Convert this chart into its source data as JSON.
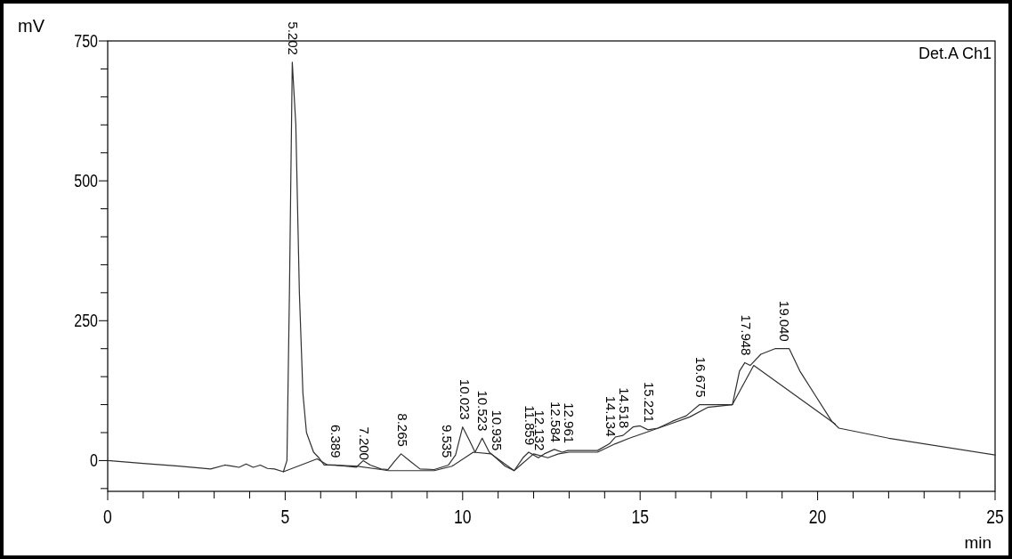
{
  "chart_data": {
    "type": "line",
    "xlabel": "min",
    "ylabel": "mV",
    "xlim": [
      0,
      25
    ],
    "ylim": [
      -55,
      750
    ],
    "xticks": [
      0,
      {
        "value": 1,
        "label": null
      },
      {
        "value": 2,
        "label": null
      },
      {
        "value": 3,
        "label": null
      },
      {
        "value": 4,
        "label": null
      },
      5,
      {
        "value": 6,
        "label": null
      },
      {
        "value": 7,
        "label": null
      },
      {
        "value": 8,
        "label": null
      },
      {
        "value": 9,
        "label": null
      },
      10,
      {
        "value": 11,
        "label": null
      },
      {
        "value": 12,
        "label": null
      },
      {
        "value": 13,
        "label": null
      },
      {
        "value": 14,
        "label": null
      },
      15,
      {
        "value": 16,
        "label": null
      },
      {
        "value": 17,
        "label": null
      },
      {
        "value": 18,
        "label": null
      },
      {
        "value": 19,
        "label": null
      },
      20,
      {
        "value": 21,
        "label": null
      },
      {
        "value": 22,
        "label": null
      },
      {
        "value": 23,
        "label": null
      },
      {
        "value": 24,
        "label": null
      },
      25
    ],
    "yticks": [
      {
        "value": -50,
        "label": null
      },
      0,
      {
        "value": 50,
        "label": null
      },
      {
        "value": 100,
        "label": null
      },
      {
        "value": 150,
        "label": null
      },
      {
        "value": 200,
        "label": null
      },
      250,
      {
        "value": 300,
        "label": null
      },
      {
        "value": 350,
        "label": null
      },
      {
        "value": 400,
        "label": null
      },
      {
        "value": 450,
        "label": null
      },
      500,
      {
        "value": 550,
        "label": null
      },
      {
        "value": 600,
        "label": null
      },
      {
        "value": 650,
        "label": null
      },
      {
        "value": 700,
        "label": null
      },
      750
    ],
    "grid": false,
    "marker": "none",
    "line_style": "solid",
    "series": [
      {
        "color": "#303030",
        "x": [
          0,
          1,
          2,
          2.9,
          3.3,
          3.5,
          3.7,
          3.9,
          4.1,
          4.3,
          4.5,
          4.7,
          4.95,
          5.05,
          5.12,
          5.2,
          5.3,
          5.4,
          5.5,
          5.6,
          5.8,
          5.95,
          6.1,
          6.4,
          6.7,
          7.0,
          7.2,
          7.4,
          7.7,
          7.9,
          8.1,
          8.265,
          8.5,
          8.8,
          9.2,
          9.6,
          9.8,
          10.0,
          10.2,
          10.35,
          10.55,
          10.75,
          10.935,
          11.2,
          11.45,
          11.7,
          11.859,
          12.0,
          12.132,
          12.3,
          12.584,
          12.8,
          12.961,
          13.3,
          13.8,
          14.134,
          14.3,
          14.518,
          14.8,
          15.0,
          15.221,
          15.5,
          15.9,
          16.3,
          16.675,
          17.0,
          17.3,
          17.6,
          17.8,
          17.95,
          18.1,
          18.4,
          18.8,
          19.2,
          19.5,
          19.9,
          20.4,
          20.6,
          22,
          25
        ],
        "values": [
          0,
          -5,
          -10,
          -15,
          -8,
          -10,
          -12,
          -6,
          -12,
          -8,
          -14,
          -15,
          -20,
          0,
          300,
          712,
          600,
          300,
          120,
          50,
          15,
          5,
          -8,
          -8,
          -10,
          -12,
          0,
          -8,
          -15,
          -16,
          0,
          12,
          0,
          -15,
          -16,
          -8,
          10,
          60,
          35,
          15,
          40,
          15,
          5,
          -10,
          -18,
          5,
          15,
          10,
          5,
          12,
          20,
          15,
          18,
          18,
          18,
          30,
          42,
          45,
          60,
          62,
          55,
          58,
          70,
          80,
          100,
          100,
          100,
          100,
          160,
          175,
          170,
          190,
          200,
          200,
          160,
          120,
          70,
          58,
          40,
          10
        ]
      },
      {
        "color": "#303030",
        "x": [
          4.95,
          5.9,
          6.2,
          7.0,
          7.7,
          7.9,
          8.8,
          9.2,
          9.7,
          10.3,
          10.8,
          11.45,
          12.0,
          12.4,
          12.7,
          13.0,
          13.8,
          14.3,
          14.7,
          15.6,
          16.4,
          16.9,
          17.6,
          18.2,
          20.5
        ],
        "values": [
          -20,
          3,
          -8,
          -10,
          -16,
          -18,
          -18,
          -18,
          -10,
          15,
          12,
          -18,
          12,
          5,
          12,
          15,
          15,
          30,
          40,
          60,
          78,
          95,
          100,
          170,
          65
        ]
      }
    ],
    "annotations": [
      "Det.A Ch1",
      {
        "text": "5.202",
        "x": 5.202,
        "y": 712
      },
      {
        "text": "6.389",
        "x": 6.389,
        "y": -8
      },
      {
        "text": "7.200",
        "x": 7.2,
        "y": -12
      },
      {
        "text": "8.265",
        "x": 8.265,
        "y": 12
      },
      {
        "text": "9.535",
        "x": 9.535,
        "y": -8
      },
      {
        "text": "10.023",
        "x": 10.023,
        "y": 60
      },
      {
        "text": "10.523",
        "x": 10.523,
        "y": 40
      },
      {
        "text": "10.935",
        "x": 10.935,
        "y": 5
      },
      {
        "text": "11.859",
        "x": 11.859,
        "y": 15
      },
      {
        "text": "12.132",
        "x": 12.132,
        "y": 5
      },
      {
        "text": "12.584",
        "x": 12.584,
        "y": 20
      },
      {
        "text": "12.961",
        "x": 12.961,
        "y": 18
      },
      {
        "text": "14.134",
        "x": 14.134,
        "y": 30
      },
      {
        "text": "14.518",
        "x": 14.518,
        "y": 45
      },
      {
        "text": "15.221",
        "x": 15.221,
        "y": 55
      },
      {
        "text": "16.675",
        "x": 16.675,
        "y": 100
      },
      {
        "text": "17.948",
        "x": 17.948,
        "y": 175
      },
      {
        "text": "19.040",
        "x": 19.04,
        "y": 200
      }
    ]
  }
}
